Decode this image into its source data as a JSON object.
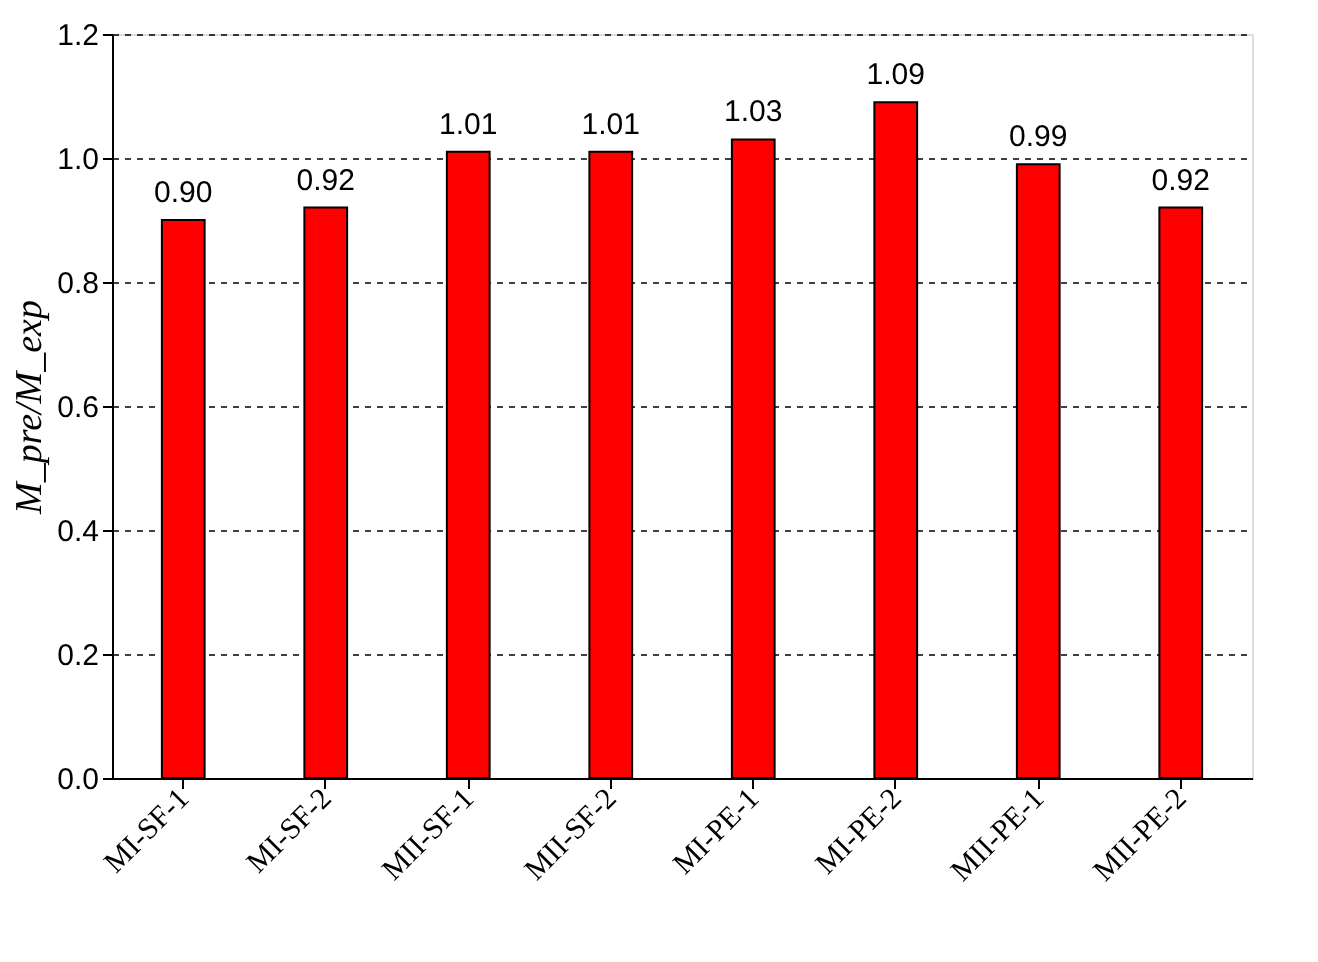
{
  "chart_data": {
    "type": "bar",
    "ylabel": "M_pre/M_exp",
    "categories": [
      "MI-SF-1",
      "MI-SF-2",
      "MII-SF-1",
      "MII-SF-2",
      "MI-PE-1",
      "MI-PE-2",
      "MII-PE-1",
      "MII-PE-2"
    ],
    "values": [
      0.9,
      0.92,
      1.01,
      1.01,
      1.03,
      1.09,
      0.99,
      0.92
    ],
    "color": "#ff0000",
    "ylim": [
      0,
      1.2
    ],
    "yticks": [
      {
        "value": 0,
        "label": "0.0"
      },
      {
        "value": 0.2,
        "label": "0.2"
      },
      {
        "value": 0.4,
        "label": "0.4"
      },
      {
        "value": 0.6,
        "label": "0.6"
      },
      {
        "value": 0.8,
        "label": "0.8"
      },
      {
        "value": 1.0,
        "label": "1.0"
      },
      {
        "value": 1.2,
        "label": "1.2"
      }
    ],
    "value_labels": [
      "0.90",
      "0.92",
      "1.01",
      "1.01",
      "1.03",
      "1.09",
      "0.99",
      "0.92"
    ],
    "grid": "y"
  }
}
